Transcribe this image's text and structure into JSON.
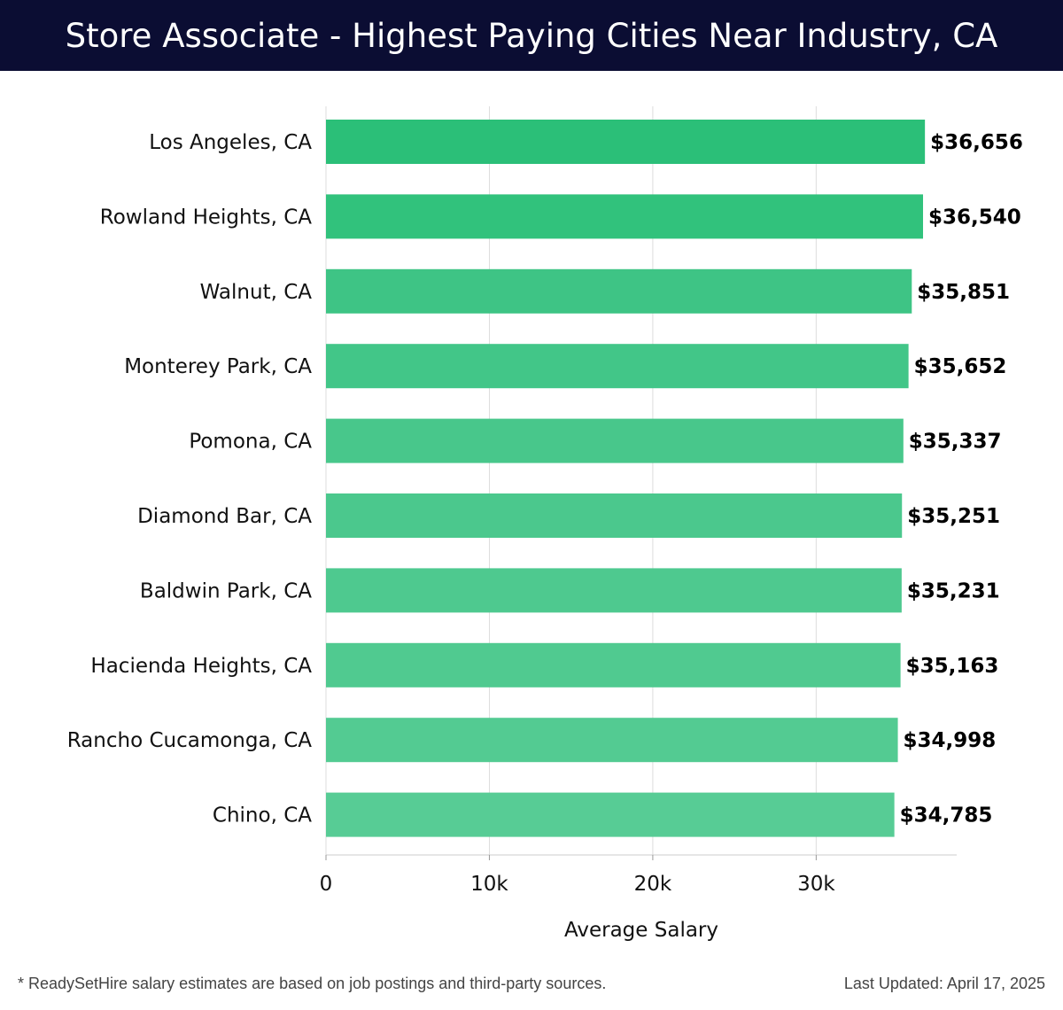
{
  "header": {
    "title": "Store Associate - Highest Paying Cities Near Industry, CA"
  },
  "chart_data": {
    "type": "bar",
    "orientation": "horizontal",
    "categories": [
      "Los Angeles, CA",
      "Rowland Heights, CA",
      "Walnut, CA",
      "Monterey Park, CA",
      "Pomona, CA",
      "Diamond Bar, CA",
      "Baldwin Park, CA",
      "Hacienda Heights, CA",
      "Rancho Cucamonga, CA",
      "Chino, CA"
    ],
    "values": [
      36656,
      36540,
      35851,
      35652,
      35337,
      35251,
      35231,
      35163,
      34998,
      34785
    ],
    "value_labels": [
      "$36,656",
      "$36,540",
      "$35,851",
      "$35,652",
      "$35,337",
      "$35,251",
      "$35,231",
      "$35,163",
      "$34,998",
      "$34,785"
    ],
    "xlabel": "Average Salary",
    "ylabel": "",
    "xlim": [
      0,
      38600
    ],
    "xticks": [
      0,
      10000,
      20000,
      30000
    ],
    "xtick_labels": [
      "0",
      "10k",
      "20k",
      "30k"
    ],
    "grid": "vertical",
    "colors": [
      "#2bbf78",
      "#31c27c",
      "#3ec485",
      "#42c688",
      "#48c78b",
      "#4bc88d",
      "#4ec98f",
      "#50ca90",
      "#53cb92",
      "#57cc95"
    ]
  },
  "footer": {
    "note": "* ReadySetHire salary estimates are based on job postings and third-party sources.",
    "updated": "Last Updated: April 17, 2025"
  }
}
